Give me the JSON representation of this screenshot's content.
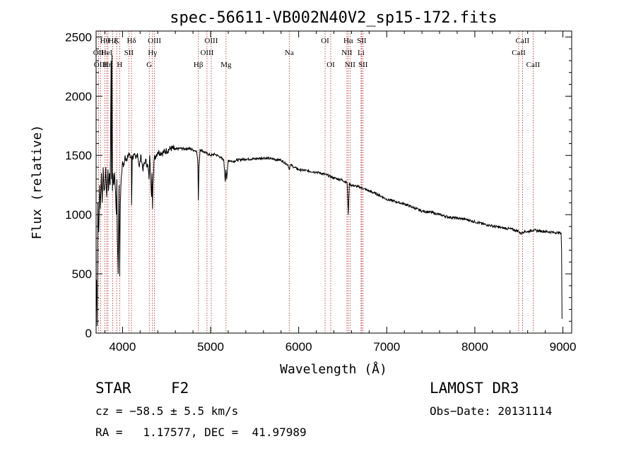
{
  "chart_data": {
    "type": "line",
    "title": "spec-56611-VB002N40V2_sp15-172.fits",
    "xlabel": "Wavelength (Å)",
    "ylabel": "Flux (relative)",
    "xlim": [
      3700,
      9100
    ],
    "ylim": [
      0,
      2550
    ],
    "xticks": [
      4000,
      5000,
      6000,
      7000,
      8000,
      9000
    ],
    "yticks": [
      0,
      500,
      1000,
      1500,
      2000,
      2500
    ],
    "series": [
      {
        "name": "flux",
        "x": [
          3700,
          3705,
          3712,
          3720,
          3730,
          3740,
          3750,
          3760,
          3770,
          3780,
          3790,
          3800,
          3810,
          3820,
          3830,
          3835,
          3840,
          3850,
          3860,
          3870,
          3875,
          3880,
          3885,
          3890,
          3900,
          3910,
          3920,
          3930,
          3935,
          3940,
          3950,
          3960,
          3968,
          3975,
          3985,
          4000,
          4010,
          4030,
          4050,
          4070,
          4090,
          4100,
          4103,
          4110,
          4130,
          4150,
          4170,
          4190,
          4210,
          4230,
          4260,
          4290,
          4300,
          4310,
          4330,
          4335,
          4340,
          4345,
          4350,
          4360,
          4380,
          4400,
          4450,
          4500,
          4550,
          4600,
          4650,
          4700,
          4750,
          4800,
          4840,
          4855,
          4861,
          4868,
          4880,
          4900,
          4950,
          5000,
          5050,
          5100,
          5150,
          5167,
          5173,
          5183,
          5200,
          5250,
          5300,
          5400,
          5500,
          5600,
          5700,
          5800,
          5880,
          5893,
          5905,
          5950,
          6000,
          6100,
          6200,
          6300,
          6400,
          6500,
          6550,
          6563,
          6575,
          6600,
          6700,
          6800,
          6900,
          7000,
          7100,
          7200,
          7300,
          7400,
          7500,
          7600,
          7700,
          7800,
          7900,
          8000,
          8100,
          8200,
          8300,
          8400,
          8498,
          8520,
          8542,
          8560,
          8600,
          8662,
          8700,
          8800,
          8900,
          8980,
          8985,
          8990
        ],
        "y": [
          200,
          450,
          60,
          1100,
          850,
          1250,
          1050,
          1350,
          1100,
          1400,
          1200,
          1250,
          1400,
          1150,
          1300,
          1380,
          1200,
          1350,
          1250,
          2300,
          1300,
          2350,
          1200,
          1350,
          1250,
          1350,
          1200,
          1000,
          1300,
          900,
          500,
          1250,
          480,
          1100,
          1300,
          1450,
          1400,
          1500,
          1450,
          1520,
          1480,
          1500,
          1080,
          1480,
          1500,
          1470,
          1520,
          1400,
          1500,
          1380,
          1460,
          1400,
          1300,
          1500,
          1150,
          1350,
          1050,
          1250,
          1300,
          1480,
          1500,
          1530,
          1520,
          1540,
          1560,
          1550,
          1560,
          1555,
          1560,
          1545,
          1540,
          1450,
          1120,
          1400,
          1550,
          1540,
          1520,
          1500,
          1510,
          1490,
          1460,
          1280,
          1380,
          1300,
          1460,
          1450,
          1460,
          1470,
          1470,
          1480,
          1470,
          1460,
          1420,
          1380,
          1420,
          1400,
          1380,
          1370,
          1360,
          1340,
          1310,
          1290,
          1270,
          1000,
          1260,
          1250,
          1230,
          1200,
          1170,
          1130,
          1110,
          1090,
          1060,
          1030,
          1020,
          1000,
          980,
          970,
          960,
          940,
          920,
          905,
          890,
          880,
          860,
          840,
          850,
          860,
          855,
          870,
          865,
          858,
          850,
          845,
          700,
          120
        ]
      }
    ],
    "lines": [
      {
        "label": "Hθ",
        "w": 3798,
        "row": 0
      },
      {
        "label": "OII",
        "w": 3727,
        "row": 1
      },
      {
        "label": "OIII",
        "w": 3750,
        "row": 2
      },
      {
        "label": "HeI",
        "w": 3820,
        "row": 1
      },
      {
        "label": "Hη",
        "w": 3835,
        "row": 2
      },
      {
        "label": "Hζ",
        "w": 3889,
        "row": 0
      },
      {
        "label": "K",
        "w": 3934,
        "row": 0
      },
      {
        "label": "SII",
        "w": 4072,
        "row": 1
      },
      {
        "label": "H",
        "w": 3968,
        "row": 2
      },
      {
        "label": "Hδ",
        "w": 4102,
        "row": 0
      },
      {
        "label": "OIII",
        "w": 4363,
        "row": 0
      },
      {
        "label": "Hγ",
        "w": 4340,
        "row": 1
      },
      {
        "label": "G",
        "w": 4304,
        "row": 2
      },
      {
        "label": "Hβ",
        "w": 4861,
        "row": 2
      },
      {
        "label": "OIII",
        "w": 5007,
        "row": 0
      },
      {
        "label": "OIII",
        "w": 4959,
        "row": 1
      },
      {
        "label": "Mg",
        "w": 5175,
        "row": 2
      },
      {
        "label": "Na",
        "w": 5893,
        "row": 1
      },
      {
        "label": "OI",
        "w": 6300,
        "row": 0
      },
      {
        "label": "OI",
        "w": 6364,
        "row": 2
      },
      {
        "label": "Hα",
        "w": 6563,
        "row": 0
      },
      {
        "label": "NII",
        "w": 6548,
        "row": 1
      },
      {
        "label": "NII",
        "w": 6583,
        "row": 2
      },
      {
        "label": "SII",
        "w": 6716,
        "row": 0
      },
      {
        "label": "Li",
        "w": 6708,
        "row": 1
      },
      {
        "label": "SII",
        "w": 6731,
        "row": 2
      },
      {
        "label": "CaII",
        "w": 8542,
        "row": 0
      },
      {
        "label": "CaII",
        "w": 8498,
        "row": 1
      },
      {
        "label": "CaII",
        "w": 8662,
        "row": 2
      }
    ]
  },
  "info": {
    "class_label": "STAR",
    "subclass": "F2",
    "survey": "LAMOST DR3",
    "cz": "cz = −58.5 ± 5.5 km/s",
    "obs_date": "Obs−Date: 20131114",
    "coords": "RA =   1.17577, DEC =  41.97989"
  }
}
